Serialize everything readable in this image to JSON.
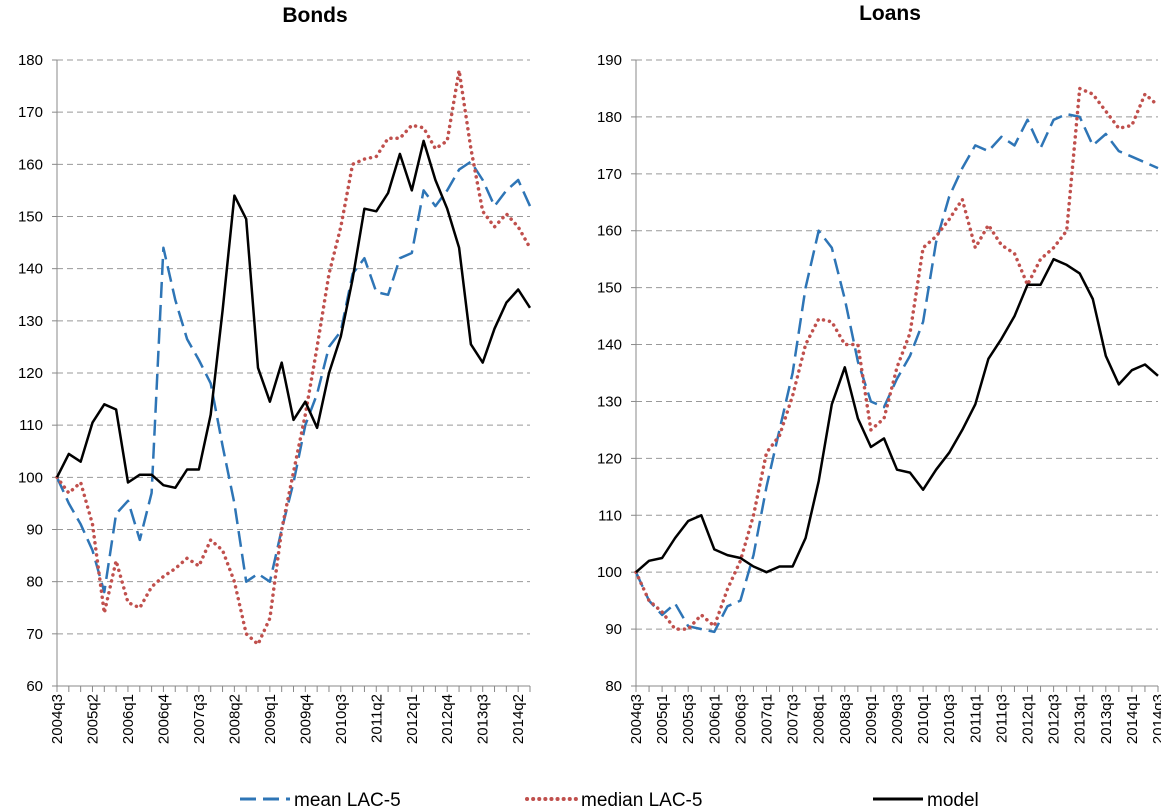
{
  "chart_data": [
    {
      "type": "line",
      "title": "Bonds",
      "categories": [
        "2004q3",
        null,
        null,
        "2005q2",
        null,
        null,
        "2006q1",
        null,
        null,
        "2006q4",
        null,
        null,
        "2007q3",
        null,
        null,
        "2008q2",
        null,
        null,
        "2009q1",
        null,
        null,
        "2009q4",
        null,
        null,
        "2010q3",
        null,
        null,
        "2011q2",
        null,
        null,
        "2012q1",
        null,
        null,
        "2012q4",
        null,
        null,
        "2013q3",
        null,
        null,
        "2014q2",
        null
      ],
      "series": [
        {
          "name": "mean LAC-5",
          "color": "#2e75b6",
          "values": [
            100,
            95,
            91,
            86,
            78,
            93,
            95.5,
            88,
            97,
            144,
            134,
            126.5,
            122.5,
            118,
            106,
            95,
            80,
            81.5,
            80,
            90,
            99,
            110,
            116,
            125,
            128,
            139,
            142,
            135.5,
            135,
            142,
            143,
            155,
            152,
            155,
            159,
            160.5,
            157,
            152,
            155,
            157,
            152
          ]
        },
        {
          "name": "median LAC-5",
          "color": "#c0504d",
          "values": [
            100,
            97,
            99,
            91,
            74,
            84,
            76,
            75,
            79,
            81,
            82.5,
            84.5,
            83,
            88,
            86,
            80,
            70,
            68,
            73,
            90,
            101,
            112,
            125,
            139,
            148,
            160,
            161,
            161.5,
            165,
            165,
            167.5,
            167,
            163,
            164.5,
            178,
            163,
            151,
            148,
            150.5,
            148,
            144
          ]
        },
        {
          "name": "model",
          "color": "#000000",
          "values": [
            100,
            104.5,
            103,
            110.5,
            114,
            113,
            99,
            100.5,
            100.5,
            98.5,
            98,
            101.5,
            101.5,
            112,
            132,
            154,
            149.5,
            121,
            114.5,
            122,
            111,
            114.5,
            109.5,
            120,
            127,
            138,
            151.5,
            151,
            154.5,
            162,
            155,
            164.5,
            157,
            151.5,
            144,
            125.5,
            122,
            128.5,
            133.5,
            136,
            132.5
          ]
        }
      ],
      "ylim": [
        60,
        180
      ],
      "yticks": [
        60,
        70,
        80,
        90,
        100,
        110,
        120,
        130,
        140,
        150,
        160,
        170,
        180
      ],
      "grid": true
    },
    {
      "type": "line",
      "title": "Loans",
      "categories": [
        "2004q3",
        null,
        "2005q1",
        null,
        "2005q3",
        null,
        "2006q1",
        null,
        "2006q3",
        null,
        "2007q1",
        null,
        "2007q3",
        null,
        "2008q1",
        null,
        "2008q3",
        null,
        "2009q1",
        null,
        "2009q3",
        null,
        "2010q1",
        null,
        "2010q3",
        null,
        "2011q1",
        null,
        "2011q3",
        null,
        "2012q1",
        null,
        "2012q3",
        null,
        "2013q1",
        null,
        "2013q3",
        null,
        "2014q1",
        null,
        "2014q3"
      ],
      "series": [
        {
          "color": "#2e75b6",
          "values": [
            100,
            95,
            92.5,
            94.5,
            90.5,
            90,
            89.5,
            94,
            95,
            103,
            115,
            125,
            135,
            150,
            160,
            157,
            148,
            137,
            130,
            129,
            134,
            138,
            144,
            158,
            166,
            171,
            175,
            174,
            176.5,
            175,
            179.5,
            174.5,
            179.5,
            180.5,
            180,
            175,
            177,
            174,
            173,
            172,
            171
          ]
        },
        {
          "color": "#c0504d",
          "values": [
            100,
            95,
            93,
            90,
            90,
            92.5,
            90.5,
            97,
            102,
            110,
            121,
            124,
            131,
            140,
            144.5,
            144,
            140,
            140,
            125,
            127,
            136,
            142,
            157,
            159,
            162,
            165.5,
            157,
            161,
            157.5,
            156,
            150.5,
            155,
            157,
            160,
            185,
            184,
            181,
            178,
            178.5,
            184,
            182
          ]
        },
        {
          "color": "#000000",
          "values": [
            100,
            102,
            102.5,
            106,
            109,
            110,
            104,
            103,
            102.5,
            101,
            100,
            101,
            101,
            106,
            116,
            129.5,
            136,
            127,
            122,
            123.5,
            118,
            117.5,
            114.5,
            118,
            121,
            125,
            129.5,
            137.5,
            141,
            145,
            150.5,
            150.5,
            155,
            154,
            152.5,
            148,
            138,
            133,
            135.5,
            136.5,
            134.5
          ]
        }
      ],
      "ylim": [
        80,
        190
      ],
      "yticks": [
        80,
        90,
        100,
        110,
        120,
        130,
        140,
        150,
        160,
        170,
        180,
        190
      ],
      "grid": true
    }
  ]
}
